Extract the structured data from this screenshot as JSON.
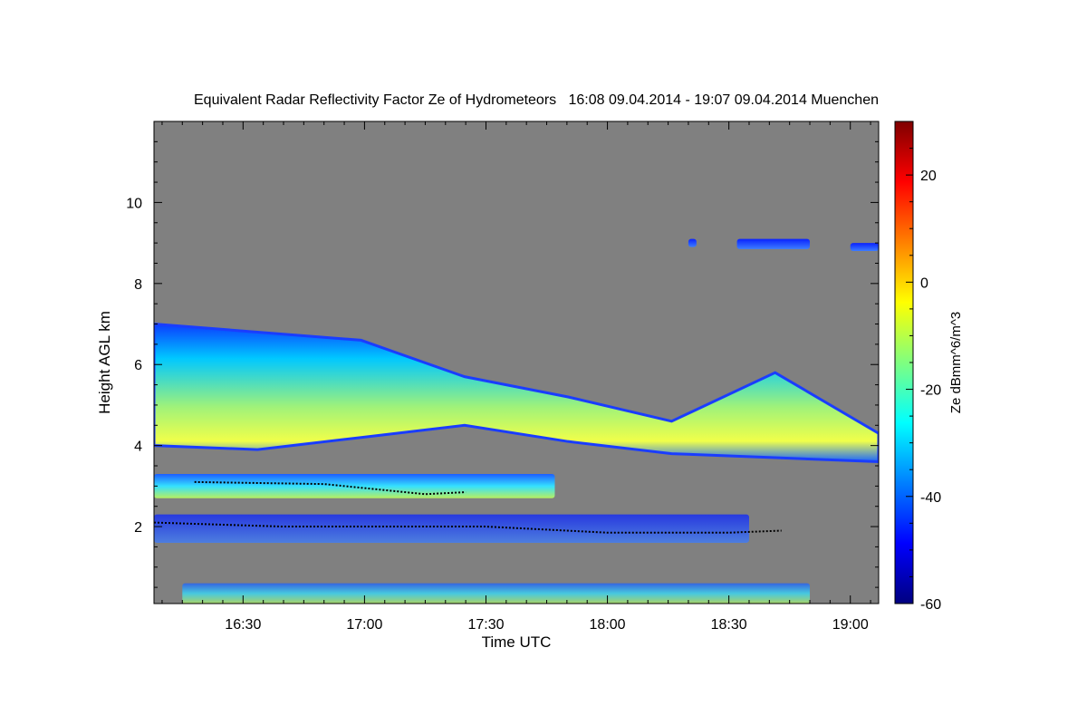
{
  "chart_data": {
    "type": "heatmap",
    "title": "Equivalent Radar Reflectivity Factor Ze of Hydrometeors   16:08 09.04.2014 - 19:07 09.04.2014 Muenchen",
    "xlabel": "Time UTC",
    "ylabel": "Height AGL km",
    "xlim": [
      "16:08",
      "19:07"
    ],
    "x_ticks": [
      "16:30",
      "17:00",
      "17:30",
      "18:00",
      "18:30",
      "19:00"
    ],
    "ylim": [
      0.1,
      12
    ],
    "y_ticks": [
      2,
      4,
      6,
      8,
      10
    ],
    "colorbar": {
      "label": "Ze dBmm^6/m^3",
      "range": [
        -60,
        30
      ],
      "ticks": [
        20,
        0,
        -20,
        -40,
        -60
      ],
      "colormap": "jet"
    },
    "background_color": "#808080",
    "layers": [
      {
        "type": "main-cloud",
        "start": "16:08",
        "end": "19:07",
        "base_km": [
          4.0,
          3.9,
          4.2,
          4.5,
          4.1,
          3.8,
          3.7,
          3.6
        ],
        "top_km": [
          7.0,
          6.8,
          6.6,
          5.7,
          5.2,
          4.6,
          5.8,
          4.3
        ],
        "peak_dbz": -10
      },
      {
        "type": "high-cirrus",
        "start": "18:20",
        "end": "18:22",
        "base_km": 8.9,
        "top_km": 9.1,
        "peak_dbz": -30
      },
      {
        "type": "high-cirrus",
        "start": "18:32",
        "end": "18:50",
        "base_km": 8.85,
        "top_km": 9.1,
        "peak_dbz": -30
      },
      {
        "type": "high-cirrus",
        "start": "19:00",
        "end": "19:07",
        "base_km": 8.8,
        "top_km": 9.0,
        "peak_dbz": -30
      },
      {
        "type": "mid-layer",
        "start": "16:08",
        "end": "17:47",
        "base_km": 2.7,
        "top_km": 3.3,
        "peak_dbz": -20
      },
      {
        "type": "low-echoes",
        "start": "16:08",
        "end": "18:35",
        "base_km": 1.6,
        "top_km": 2.3,
        "peak_dbz": -45
      },
      {
        "type": "near-surface-clutter",
        "start": "16:15",
        "end": "18:50",
        "base_km": 0.1,
        "top_km": 0.6,
        "peak_dbz": -15
      }
    ],
    "lines": [
      {
        "name": "black-dotted-cloud-base-low",
        "points": [
          [
            "16:08",
            2.1
          ],
          [
            "16:40",
            2.0
          ],
          [
            "17:30",
            2.0
          ],
          [
            "18:00",
            1.85
          ],
          [
            "18:30",
            1.85
          ],
          [
            "18:43",
            1.9
          ]
        ]
      },
      {
        "name": "black-dotted-cloud-base-mid",
        "points": [
          [
            "16:18",
            3.1
          ],
          [
            "16:50",
            3.05
          ],
          [
            "17:15",
            2.8
          ],
          [
            "17:25",
            2.85
          ]
        ]
      }
    ]
  }
}
